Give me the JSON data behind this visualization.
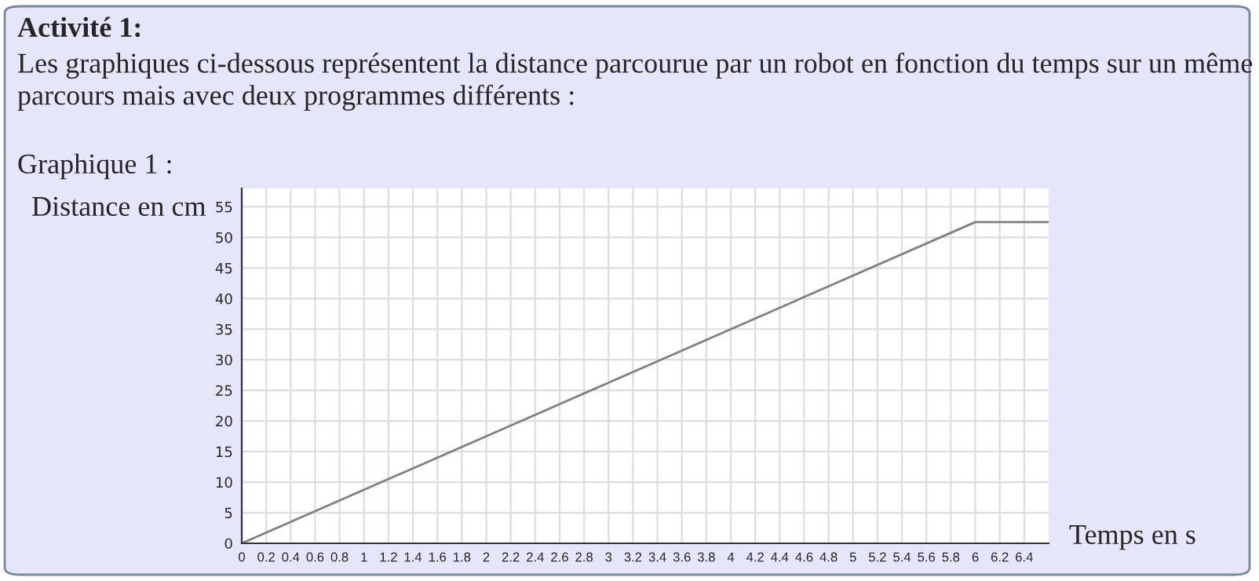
{
  "chart_data": {
    "type": "line",
    "title": "Activité 1:",
    "subtitle": "Les graphiques ci-dessous représentent la distance parcourue par un robot en fonction du temps sur un même parcours mais avec deux programmes différents :",
    "annotations": [
      "Graphique 1 :"
    ],
    "ylabel": "Distance en cm",
    "xlabel": "Temps en s",
    "x": [
      0,
      6,
      6.6
    ],
    "series": [
      {
        "color": "#808080",
        "values": [
          0,
          52.5,
          52.5
        ]
      }
    ],
    "xlim": [
      0,
      6.6
    ],
    "ylim": [
      0,
      58
    ],
    "xticks": [
      0,
      0.2,
      0.4,
      0.6,
      0.8,
      1,
      1.2,
      1.4,
      1.6,
      1.8,
      2,
      2.2,
      2.4,
      2.6,
      2.8,
      3,
      3.2,
      3.4,
      3.6,
      3.8,
      4,
      4.2,
      4.4,
      4.6,
      4.8,
      5,
      5.2,
      5.4,
      5.6,
      5.8,
      6,
      6.2,
      6.4
    ],
    "yticks": [
      0,
      5,
      10,
      15,
      20,
      25,
      30,
      35,
      40,
      45,
      50,
      55
    ],
    "grid": true,
    "marker": "none",
    "line_style": "solid",
    "legend": false
  }
}
